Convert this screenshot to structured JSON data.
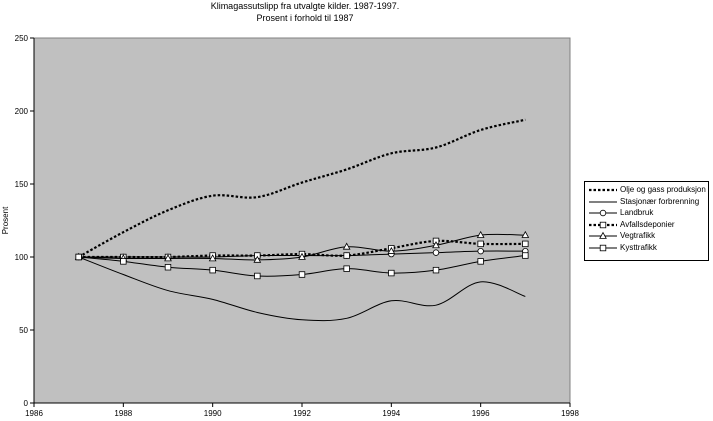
{
  "chart_data": {
    "type": "line",
    "title": "Klimagassutslipp fra utvalgte kilder. 1987-1997.",
    "subtitle": "Prosent i forhold til 1987",
    "xlabel": "",
    "ylabel": "Prosent",
    "xlim": [
      1986,
      1998
    ],
    "ylim": [
      0,
      250
    ],
    "xticks": [
      "1986",
      "1988",
      "1990",
      "1992",
      "1994",
      "1996",
      "1998"
    ],
    "yticks": [
      "0",
      "50",
      "100",
      "150",
      "200",
      "250"
    ],
    "grid": false,
    "legend_position": "right",
    "background": "#c0c0c0",
    "series": [
      {
        "name": "Olje og gass produksjon",
        "style": "dotted-bold",
        "marker": "none",
        "x": [
          1987,
          1988,
          1989,
          1990,
          1991,
          1992,
          1993,
          1994,
          1995,
          1996,
          1997
        ],
        "values": [
          100,
          117,
          132,
          142,
          141,
          151,
          160,
          171,
          175,
          187,
          194
        ]
      },
      {
        "name": "Stasjonær forbrenning",
        "style": "solid",
        "marker": "none",
        "x": [
          1987,
          1988,
          1989,
          1990,
          1991,
          1992,
          1993,
          1994,
          1995,
          1996,
          1997
        ],
        "values": [
          100,
          88,
          77,
          71,
          62,
          57,
          58,
          70,
          67,
          83,
          73
        ]
      },
      {
        "name": "Landbruk",
        "style": "solid",
        "marker": "circle",
        "x": [
          1987,
          1988,
          1989,
          1990,
          1991,
          1992,
          1993,
          1994,
          1995,
          1996,
          1997
        ],
        "values": [
          100,
          100,
          100,
          100,
          101,
          101,
          101,
          102,
          103,
          104,
          104
        ]
      },
      {
        "name": "Avfallsdeponier",
        "style": "dotted-bold",
        "marker": "square",
        "x": [
          1987,
          1988,
          1989,
          1990,
          1991,
          1992,
          1993,
          1994,
          1995,
          1996,
          1997
        ],
        "values": [
          100,
          100,
          100,
          101,
          101,
          102,
          101,
          106,
          111,
          109,
          109
        ]
      },
      {
        "name": "Vegtrafikk",
        "style": "solid",
        "marker": "triangle",
        "x": [
          1987,
          1988,
          1989,
          1990,
          1991,
          1992,
          1993,
          1994,
          1995,
          1996,
          1997
        ],
        "values": [
          100,
          99,
          99,
          99,
          98,
          100,
          107,
          104,
          108,
          115,
          115
        ]
      },
      {
        "name": "Kysttrafikk",
        "style": "solid",
        "marker": "square",
        "x": [
          1987,
          1988,
          1989,
          1990,
          1991,
          1992,
          1993,
          1994,
          1995,
          1996,
          1997
        ],
        "values": [
          100,
          97,
          93,
          91,
          87,
          88,
          92,
          89,
          91,
          97,
          101
        ]
      }
    ]
  }
}
